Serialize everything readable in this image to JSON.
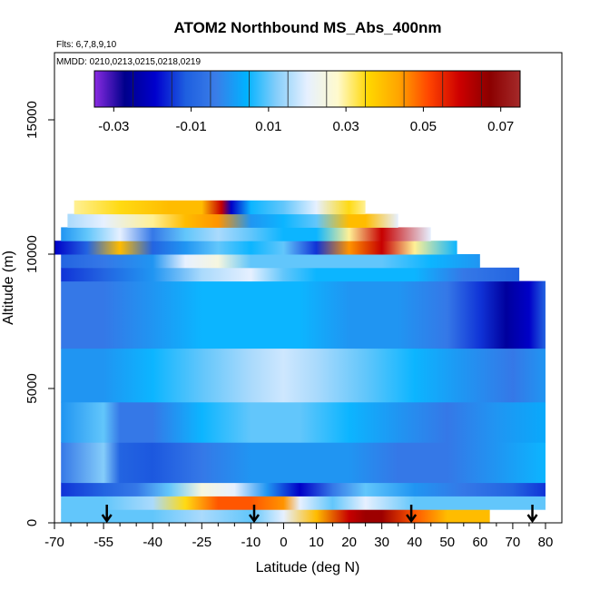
{
  "chart_data": {
    "type": "heatmap",
    "title": "ATOM2 Northbound MS_Abs_400nm",
    "subtitle": "Flts: 6,7,8,9,10",
    "annotation": "MMDD: 0210,0213,0215,0218,0219",
    "xlabel": "Latitude (deg N)",
    "ylabel": "Altitude (m)",
    "xlim": [
      -70,
      85
    ],
    "ylim": [
      0,
      17500
    ],
    "xticks": [
      -70,
      -55,
      -40,
      -25,
      -10,
      0,
      10,
      20,
      30,
      40,
      50,
      60,
      70,
      80
    ],
    "xtick_labels": [
      "-70",
      "-55",
      "-40",
      "-25",
      "-10",
      "0",
      "10",
      "20",
      "30",
      "40",
      "50",
      "60",
      "70",
      "80"
    ],
    "yticks": [
      0,
      5000,
      10000,
      15000
    ],
    "ytick_labels": [
      "0",
      "5000",
      "10000",
      "15000"
    ],
    "colorbar": {
      "min": -0.035,
      "max": 0.075,
      "ticks": [
        -0.03,
        -0.01,
        0.01,
        0.03,
        0.05,
        0.07
      ],
      "tick_labels": [
        "-0.03",
        "-0.01",
        "0.01",
        "0.03",
        "0.05",
        "0.07"
      ],
      "colors": [
        "#8a2be2",
        "#00008b",
        "#0000cd",
        "#1e5fe0",
        "#3a7de8",
        "#00b2ff",
        "#87cefa",
        "#e6f0ff",
        "#fffacd",
        "#ffd700",
        "#ffa500",
        "#ff4500",
        "#cd0000",
        "#8b0000",
        "#a52a2a"
      ]
    },
    "profile_latitudes": [
      -54,
      -9,
      39,
      76
    ],
    "bands": [
      {
        "alt_low": 0,
        "alt_high": 500,
        "lat_start": -68,
        "lat_end": 63,
        "lats": [
          -68,
          -55,
          -40,
          -25,
          -10,
          0,
          10,
          20,
          25,
          30,
          40,
          50,
          63
        ],
        "values": [
          0.01,
          0.01,
          0.01,
          0.015,
          0.01,
          0.02,
          0.04,
          0.06,
          0.065,
          0.065,
          0.05,
          0.04,
          0.04
        ]
      },
      {
        "alt_low": 500,
        "alt_high": 1000,
        "lat_start": -68,
        "lat_end": 80,
        "lats": [
          -68,
          -55,
          -40,
          -30,
          -20,
          -10,
          0,
          5,
          15,
          25,
          40,
          55,
          80
        ],
        "values": [
          0.01,
          0.01,
          0.015,
          0.035,
          0.05,
          0.05,
          0.045,
          0.02,
          0.01,
          0.02,
          0.01,
          0.01,
          0.01
        ]
      },
      {
        "alt_low": 1000,
        "alt_high": 1500,
        "lat_start": -68,
        "lat_end": 80,
        "lats": [
          -68,
          -55,
          -45,
          -35,
          -25,
          -15,
          -5,
          5,
          15,
          25,
          40,
          55,
          70,
          80
        ],
        "values": [
          -0.015,
          -0.01,
          -0.005,
          0.01,
          0.025,
          0.02,
          0.0,
          -0.02,
          -0.005,
          0.01,
          0.0,
          -0.005,
          -0.01,
          -0.015
        ]
      },
      {
        "alt_low": 1500,
        "alt_high": 3000,
        "lat_start": -68,
        "lat_end": 80,
        "lats": [
          -68,
          -55,
          -50,
          -40,
          -25,
          -10,
          5,
          20,
          35,
          50,
          65,
          80
        ],
        "values": [
          -0.005,
          0.012,
          -0.01,
          -0.012,
          -0.005,
          0.0,
          0.0,
          0.0,
          -0.005,
          -0.005,
          0.0,
          0.005
        ]
      },
      {
        "alt_low": 3000,
        "alt_high": 4500,
        "lat_start": -68,
        "lat_end": 80,
        "lats": [
          -68,
          -55,
          -50,
          -40,
          -25,
          -10,
          5,
          20,
          35,
          50,
          65,
          80
        ],
        "values": [
          0.0,
          0.01,
          -0.005,
          -0.005,
          0.005,
          0.01,
          0.01,
          0.005,
          0.0,
          -0.005,
          0.0,
          0.003
        ]
      },
      {
        "alt_low": 4500,
        "alt_high": 6500,
        "lat_start": -68,
        "lat_end": 80,
        "lats": [
          -68,
          -55,
          -40,
          -25,
          -10,
          0,
          10,
          25,
          40,
          55,
          70,
          80
        ],
        "values": [
          0.0,
          0.0,
          0.005,
          0.01,
          0.015,
          0.018,
          0.015,
          0.01,
          0.005,
          0.0,
          -0.005,
          0.0
        ]
      },
      {
        "alt_low": 6500,
        "alt_high": 9000,
        "lat_start": -68,
        "lat_end": 80,
        "lats": [
          -68,
          -55,
          -40,
          -25,
          -10,
          5,
          20,
          35,
          50,
          60,
          68,
          75,
          80
        ],
        "values": [
          -0.005,
          -0.005,
          0.0,
          0.005,
          0.005,
          0.005,
          0.0,
          0.0,
          -0.005,
          -0.015,
          -0.025,
          -0.02,
          -0.01
        ]
      },
      {
        "alt_low": 9000,
        "alt_high": 9500,
        "lat_start": -68,
        "lat_end": 72,
        "lats": [
          -68,
          -55,
          -40,
          -25,
          -10,
          0,
          10,
          25,
          40,
          55,
          72
        ],
        "values": [
          -0.015,
          -0.01,
          0.0,
          0.015,
          0.02,
          0.01,
          0.005,
          0.005,
          0.005,
          -0.005,
          -0.01
        ]
      },
      {
        "alt_low": 9500,
        "alt_high": 10000,
        "lat_start": -68,
        "lat_end": 60,
        "lats": [
          -68,
          -55,
          -40,
          -30,
          -20,
          -10,
          0,
          15,
          30,
          45,
          60
        ],
        "values": [
          -0.01,
          -0.005,
          0.0,
          0.02,
          0.025,
          0.01,
          0.01,
          0.01,
          0.01,
          0.005,
          0.0
        ]
      },
      {
        "alt_low": 10000,
        "alt_high": 10500,
        "lat_start": -70,
        "lat_end": 53,
        "lats": [
          -70,
          -60,
          -50,
          -40,
          -30,
          -20,
          -10,
          0,
          10,
          20,
          30,
          40,
          53
        ],
        "values": [
          -0.02,
          -0.01,
          0.04,
          -0.01,
          0.0,
          0.01,
          0.005,
          0.01,
          -0.015,
          0.045,
          0.06,
          0.03,
          0.005
        ]
      },
      {
        "alt_low": 10500,
        "alt_high": 11000,
        "lat_start": -68,
        "lat_end": 45,
        "lats": [
          -68,
          -60,
          -50,
          -40,
          -30,
          -20,
          -10,
          0,
          10,
          20,
          30,
          45
        ],
        "values": [
          0.0,
          0.01,
          0.02,
          -0.005,
          0.01,
          0.015,
          0.01,
          0.005,
          0.005,
          0.03,
          0.06,
          0.02
        ]
      },
      {
        "alt_low": 11000,
        "alt_high": 11500,
        "lat_start": -66,
        "lat_end": 35,
        "lats": [
          -66,
          -55,
          -40,
          -30,
          -20,
          -10,
          0,
          10,
          20,
          25,
          35
        ],
        "values": [
          0.015,
          0.02,
          0.03,
          0.04,
          0.045,
          0.0,
          0.005,
          0.01,
          0.04,
          0.04,
          0.02
        ]
      },
      {
        "alt_low": 11500,
        "alt_high": 12000,
        "lat_start": -64,
        "lat_end": 25,
        "lats": [
          -64,
          -50,
          -35,
          -25,
          -19,
          -16,
          -10,
          0,
          10,
          20,
          25
        ],
        "values": [
          0.03,
          0.035,
          0.04,
          0.04,
          0.06,
          -0.02,
          0.005,
          0.01,
          0.02,
          0.035,
          0.03
        ]
      }
    ]
  }
}
